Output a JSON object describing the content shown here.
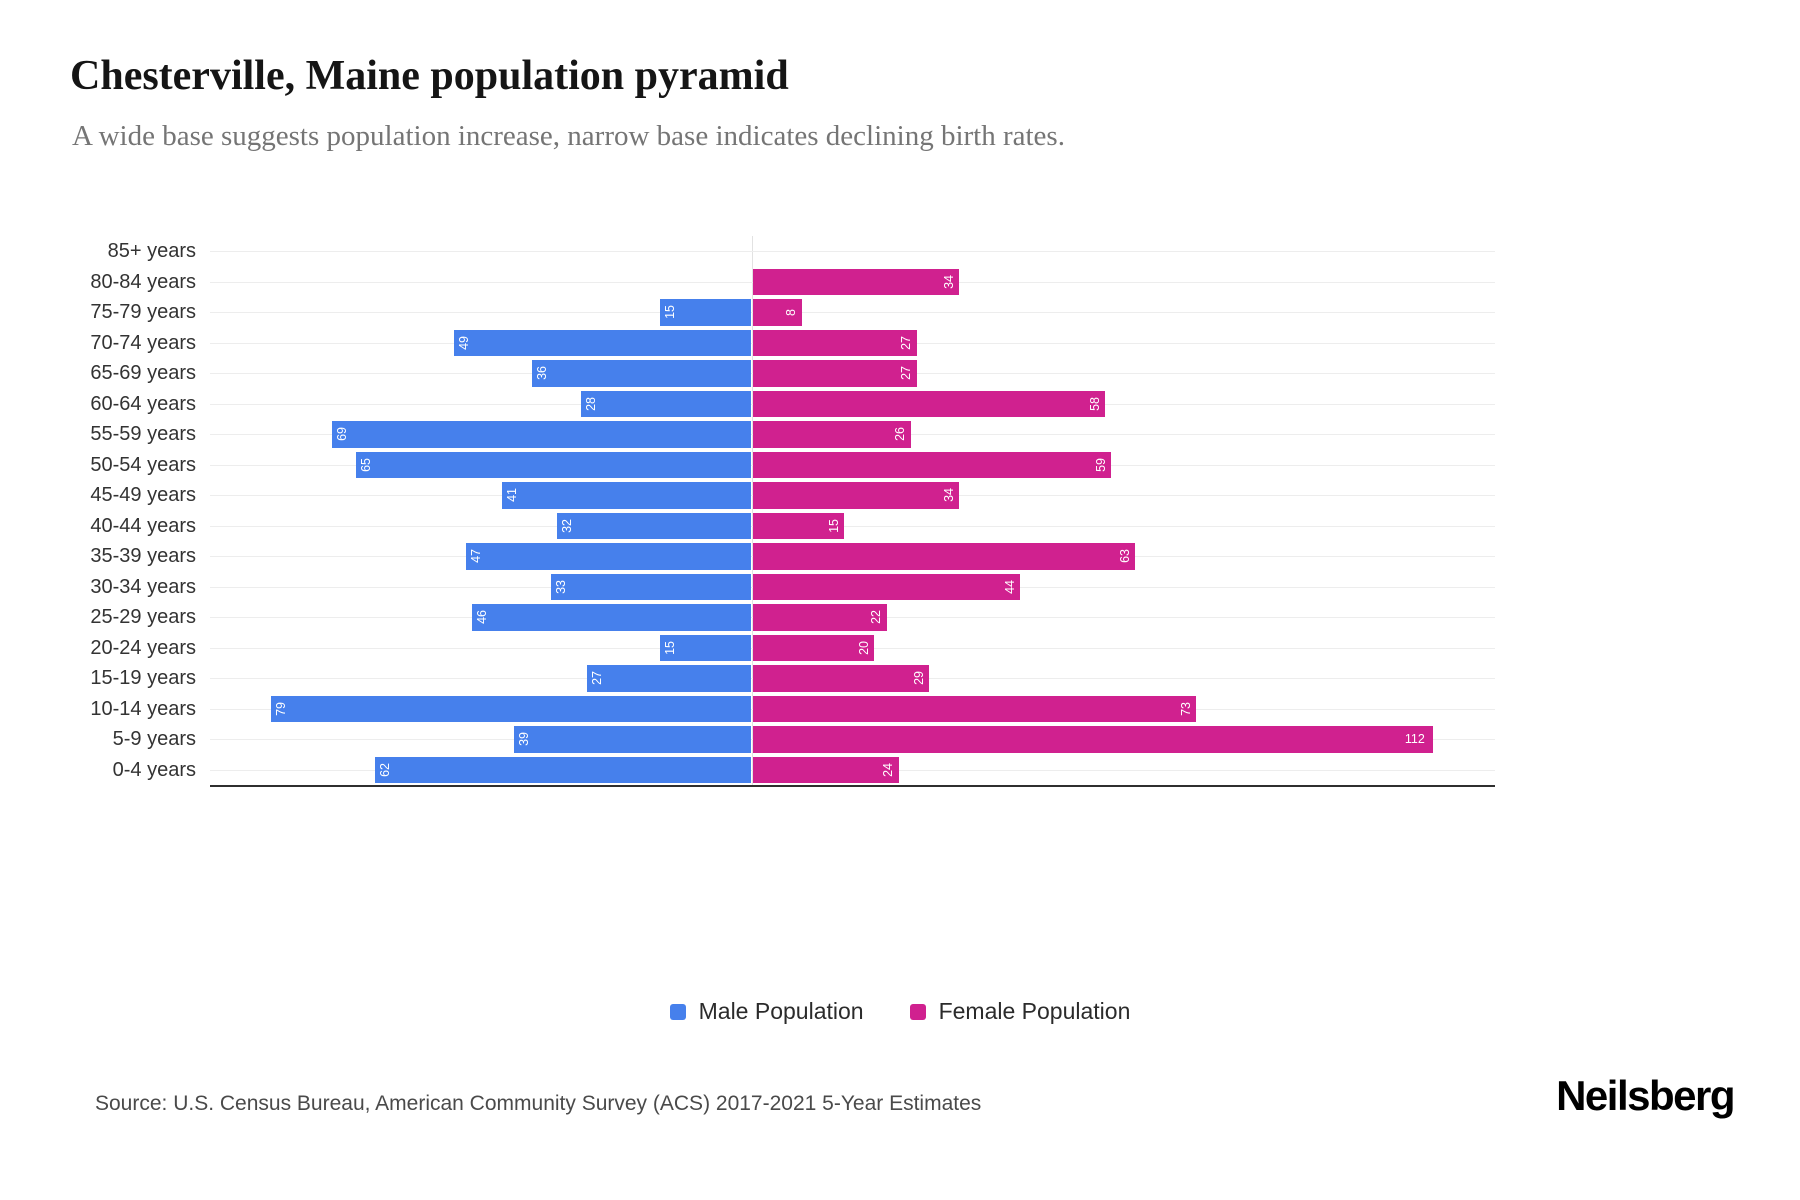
{
  "title": "Chesterville, Maine population pyramid",
  "subtitle": "A wide base suggests population increase, narrow base indicates declining birth rates.",
  "source": "Source: U.S. Census Bureau, American Community Survey (ACS) 2017-2021 5-Year Estimates",
  "brand": "Neilsberg",
  "legend": {
    "male": "Male Population",
    "female": "Female Population"
  },
  "colors": {
    "male": "#4680ec",
    "female": "#d0218f"
  },
  "chart_data": {
    "type": "bar",
    "variant": "population-pyramid",
    "orientation": "horizontal",
    "categories_order": "top-to-bottom",
    "categories": [
      "85+ years",
      "80-84 years",
      "75-79 years",
      "70-74 years",
      "65-69 years",
      "60-64 years",
      "55-59 years",
      "50-54 years",
      "45-49 years",
      "40-44 years",
      "35-39 years",
      "30-34 years",
      "25-29 years",
      "20-24 years",
      "15-19 years",
      "10-14 years",
      "5-9 years",
      "0-4 years"
    ],
    "series": [
      {
        "name": "Male Population",
        "side": "left",
        "values": [
          0,
          0,
          15,
          49,
          36,
          28,
          69,
          65,
          41,
          32,
          47,
          33,
          46,
          15,
          27,
          79,
          39,
          62
        ]
      },
      {
        "name": "Female Population",
        "side": "right",
        "values": [
          0,
          34,
          8,
          27,
          27,
          58,
          26,
          59,
          34,
          15,
          63,
          44,
          22,
          20,
          29,
          73,
          112,
          24
        ]
      }
    ],
    "value_labels": "inside-bar-end, white, rotated vertical (horizontal when >= 100)",
    "grid": "light horizontal gridlines per category, vertical center zero-line",
    "legend_position": "bottom-center",
    "xlim_left_max": 89,
    "xlim_right_max": 122
  }
}
